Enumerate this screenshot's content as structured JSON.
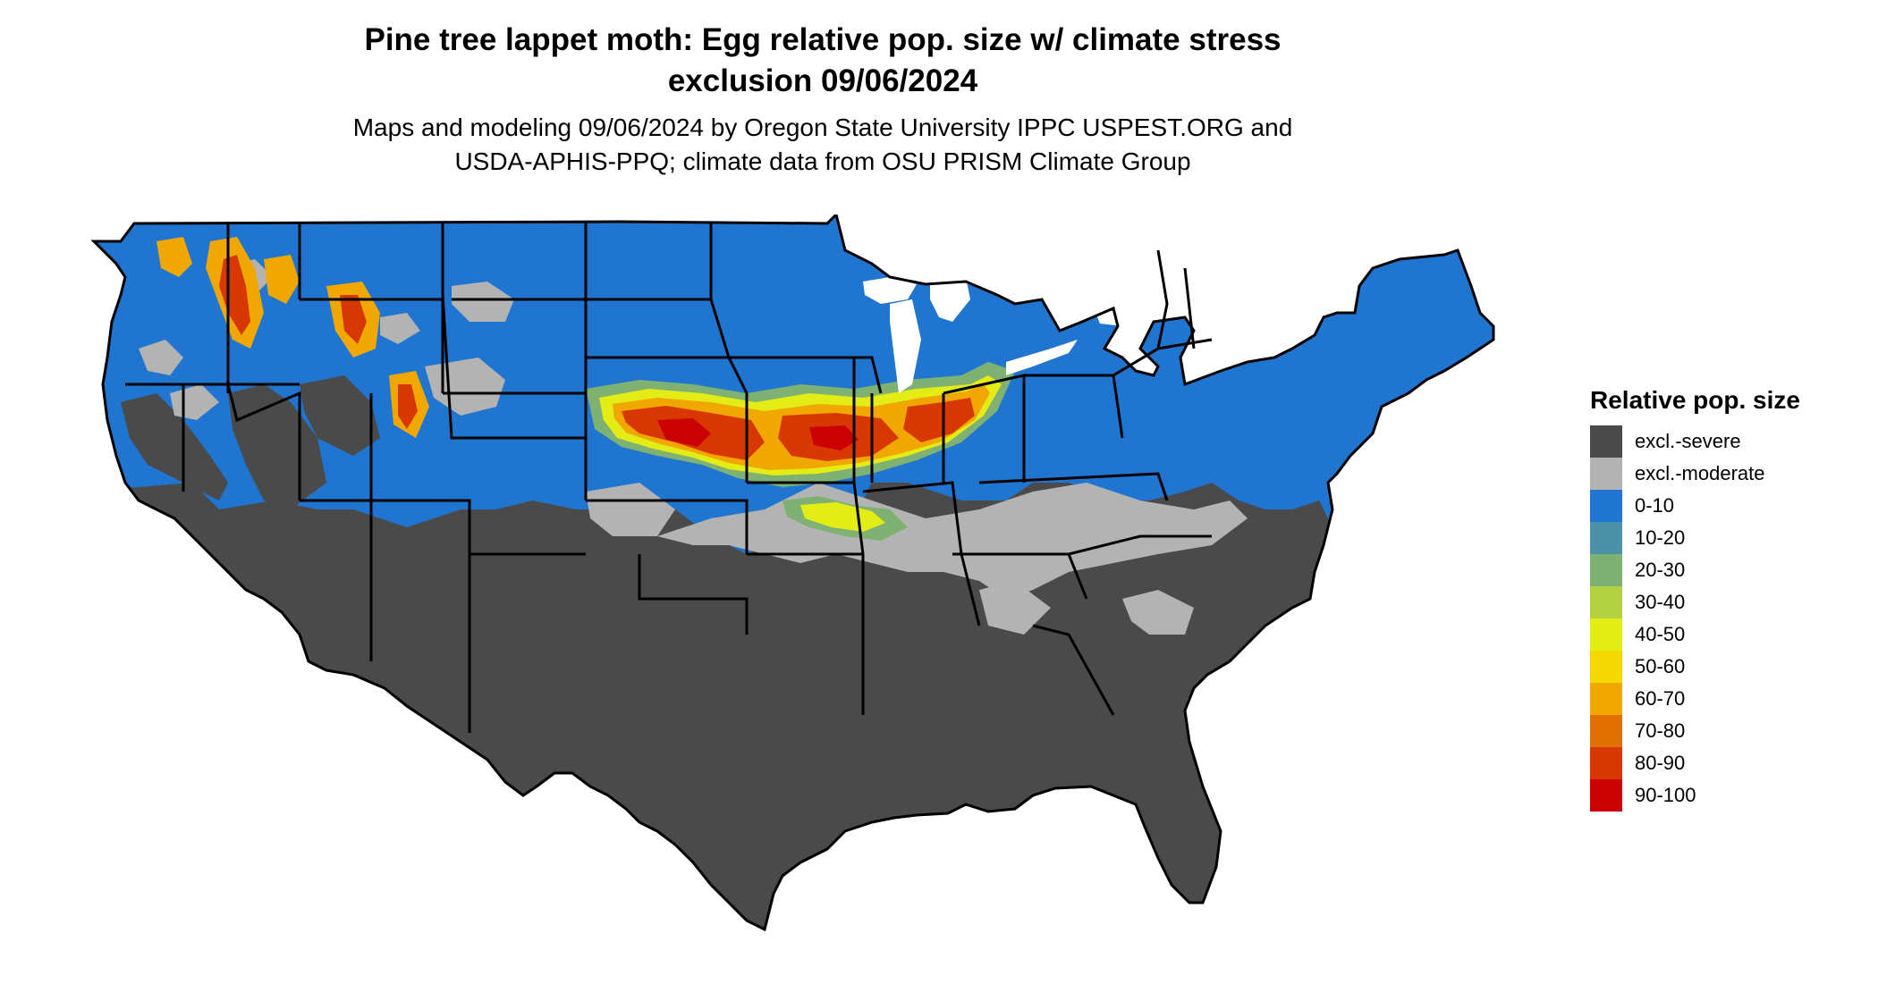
{
  "title": {
    "line1": "Pine tree lappet moth: Egg relative pop. size w/ climate stress",
    "line2": "exclusion 09/06/2024"
  },
  "subtitle": {
    "line1": "Maps and modeling 09/06/2024 by Oregon State University IPPC USPEST.ORG and",
    "line2": "USDA-APHIS-PPQ; climate data from OSU PRISM Climate Group"
  },
  "legend": {
    "title": "Relative pop. size",
    "items": [
      {
        "label": "excl.-severe",
        "color": "#4a4a4a"
      },
      {
        "label": "excl.-moderate",
        "color": "#b3b3b3"
      },
      {
        "label": "0-10",
        "color": "#1f75cf"
      },
      {
        "label": "10-20",
        "color": "#4a92a6"
      },
      {
        "label": "20-30",
        "color": "#7fb272"
      },
      {
        "label": "30-40",
        "color": "#b4d23f"
      },
      {
        "label": "40-50",
        "color": "#e4ec16"
      },
      {
        "label": "50-60",
        "color": "#f5d800"
      },
      {
        "label": "60-70",
        "color": "#f0a800"
      },
      {
        "label": "70-80",
        "color": "#e07000"
      },
      {
        "label": "80-90",
        "color": "#d83800"
      },
      {
        "label": "90-100",
        "color": "#cc0000"
      }
    ]
  },
  "map_colors": {
    "border": "#000000"
  }
}
